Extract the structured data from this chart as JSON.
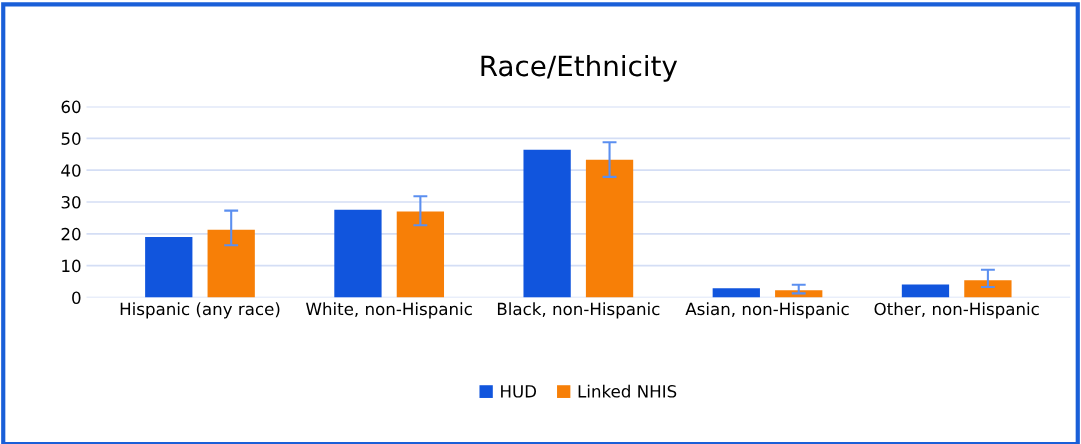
{
  "chart_data": {
    "type": "bar",
    "title": "Race/Ethnicity",
    "categories": [
      "Hispanic (any race)",
      "White, non-Hispanic",
      "Black, non-Hispanic",
      "Asian, non-Hispanic",
      "Other, non-Hispanic"
    ],
    "series": [
      {
        "name": "HUD",
        "color": "#1155dd",
        "values": [
          19,
          27.6,
          46.4,
          2.9,
          4.1
        ]
      },
      {
        "name": "Linked NHIS",
        "color": "#f77f07",
        "values": [
          21.3,
          27.0,
          43.3,
          2.3,
          5.4
        ],
        "errors": [
          [
            16.4,
            27.3
          ],
          [
            22.7,
            31.8
          ],
          [
            37.9,
            48.8
          ],
          [
            1.3,
            4.0
          ],
          [
            3.3,
            8.7
          ]
        ]
      }
    ],
    "ylim": [
      0,
      60
    ],
    "yticks": [
      0,
      10,
      20,
      30,
      40,
      50,
      60
    ],
    "grid": "y",
    "legend": "bottom"
  }
}
